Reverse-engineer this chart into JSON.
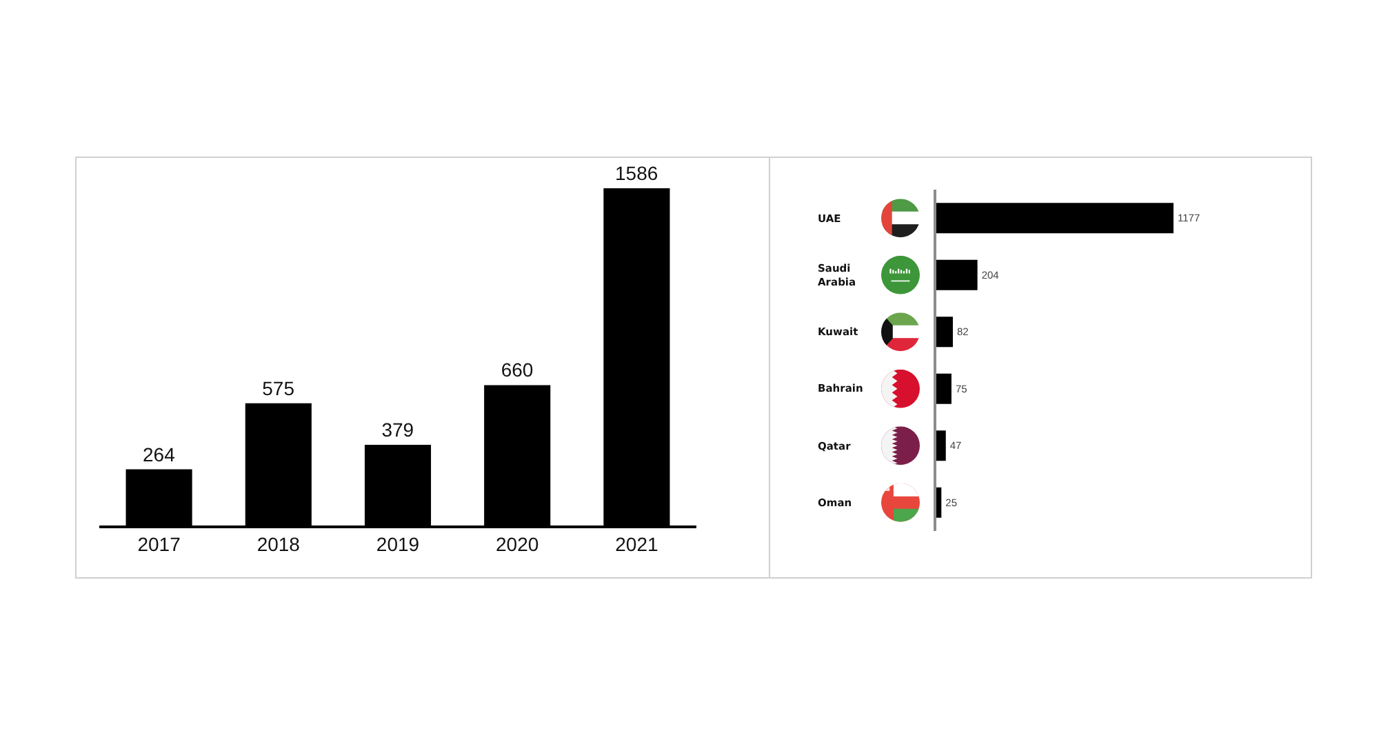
{
  "chart_data": [
    {
      "type": "bar",
      "categories": [
        "2017",
        "2018",
        "2019",
        "2020",
        "2021"
      ],
      "values": [
        264,
        575,
        379,
        660,
        1586
      ],
      "color": "#000000",
      "data_labels": true,
      "tick_labels": "x"
    },
    {
      "type": "bar",
      "orientation": "horizontal",
      "categories": [
        "UAE",
        "Saudi Arabia",
        "Kuwait",
        "Bahrain",
        "Qatar",
        "Oman"
      ],
      "values": [
        1177,
        204,
        82,
        75,
        47,
        25
      ],
      "color": "#000000",
      "data_labels": true,
      "tick_labels": "y"
    }
  ]
}
